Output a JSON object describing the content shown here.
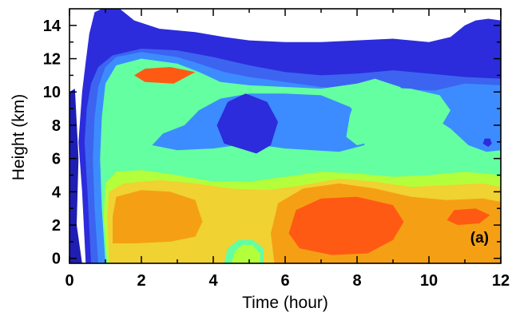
{
  "chart_data": {
    "type": "contour",
    "xlabel": "Time (hour)",
    "ylabel": "Height (km)",
    "panel_label": "(a)",
    "xlim": [
      0,
      12
    ],
    "ylim": [
      -0.3,
      15
    ],
    "xticks": [
      0,
      2,
      4,
      6,
      8,
      10,
      12
    ],
    "yticks": [
      0,
      2,
      4,
      6,
      8,
      10,
      12,
      14
    ],
    "x_tick_labels": [
      "0",
      "2",
      "4",
      "6",
      "8",
      "10",
      "12"
    ],
    "y_tick_labels": [
      "0",
      "2",
      "4",
      "6",
      "8",
      "10",
      "12",
      "14"
    ],
    "level_colors": [
      "#1e1eb4",
      "#2c2cdc",
      "#3c64f0",
      "#3c8cff",
      "#30c8ff",
      "#64ffa0",
      "#b4ff3c",
      "#f0d232",
      "#f5a014",
      "#ff5a14"
    ],
    "regions": [
      {
        "name": "band-outer",
        "color": "#2c2cdc",
        "points": [
          [
            0.45,
            -0.3
          ],
          [
            0.35,
            4
          ],
          [
            0.25,
            7
          ],
          [
            0.3,
            8.5
          ],
          [
            0.35,
            10
          ],
          [
            0.45,
            11.8
          ],
          [
            0.55,
            13.5
          ],
          [
            0.7,
            14.8
          ],
          [
            0.9,
            15
          ],
          [
            1.4,
            15
          ],
          [
            1.8,
            14.3
          ],
          [
            2.5,
            13.8
          ],
          [
            3.5,
            13.6
          ],
          [
            4.3,
            13.3
          ],
          [
            5,
            13.1
          ],
          [
            6,
            13
          ],
          [
            7,
            13
          ],
          [
            8,
            13.1
          ],
          [
            9,
            13.2
          ],
          [
            10,
            13
          ],
          [
            10.6,
            13.3
          ],
          [
            11,
            14
          ],
          [
            11.3,
            14.3
          ],
          [
            11.65,
            14.4
          ],
          [
            12,
            14.3
          ],
          [
            12,
            -0.3
          ]
        ]
      },
      {
        "name": "band-1",
        "color": "#3c64f0",
        "points": [
          [
            0.6,
            -0.3
          ],
          [
            0.5,
            4
          ],
          [
            0.42,
            7
          ],
          [
            0.48,
            9
          ],
          [
            0.6,
            10.5
          ],
          [
            0.8,
            11.5
          ],
          [
            1.2,
            12.2
          ],
          [
            2,
            12.6
          ],
          [
            3,
            12.5
          ],
          [
            4,
            12.1
          ],
          [
            5,
            11.6
          ],
          [
            6,
            11.2
          ],
          [
            7,
            11
          ],
          [
            8,
            11.1
          ],
          [
            9,
            11.3
          ],
          [
            10,
            11.1
          ],
          [
            11,
            10.9
          ],
          [
            12,
            10.8
          ],
          [
            12,
            -0.3
          ]
        ]
      },
      {
        "name": "band-2",
        "color": "#3c8cff",
        "points": [
          [
            0.8,
            -0.3
          ],
          [
            0.7,
            3
          ],
          [
            0.65,
            6
          ],
          [
            0.7,
            8.5
          ],
          [
            0.8,
            10.3
          ],
          [
            1,
            11.5
          ],
          [
            1.3,
            12.1
          ],
          [
            2,
            12.4
          ],
          [
            3,
            12.1
          ],
          [
            3.6,
            11.7
          ],
          [
            4.3,
            11.2
          ],
          [
            5,
            10.9
          ],
          [
            6,
            10.6
          ],
          [
            7,
            10.3
          ],
          [
            8,
            10.1
          ],
          [
            9,
            10.2
          ],
          [
            10,
            10.1
          ],
          [
            12,
            10
          ],
          [
            12,
            -0.3
          ]
        ]
      },
      {
        "name": "band-3",
        "color": "#64ffa0",
        "points": [
          [
            1.0,
            -0.3
          ],
          [
            0.9,
            3
          ],
          [
            0.85,
            6
          ],
          [
            0.9,
            8.5
          ],
          [
            1,
            10.5
          ],
          [
            1.3,
            11.6
          ],
          [
            2,
            12
          ],
          [
            3,
            11.7
          ],
          [
            3.6,
            11.2
          ],
          [
            4.2,
            10.6
          ],
          [
            5,
            10.4
          ],
          [
            6,
            10.3
          ],
          [
            7,
            10.2
          ],
          [
            8,
            10.5
          ],
          [
            8.5,
            10.8
          ],
          [
            9.2,
            10.3
          ],
          [
            9.5,
            9.5
          ],
          [
            9.8,
            8.8
          ],
          [
            10.2,
            8.5
          ],
          [
            11,
            7.5
          ],
          [
            12,
            7.2
          ],
          [
            12,
            -0.3
          ]
        ]
      },
      {
        "name": "band-4",
        "color": "#b4ff3c",
        "points": [
          [
            1.05,
            -0.3
          ],
          [
            0.95,
            2.5
          ],
          [
            1,
            4.5
          ],
          [
            1.3,
            5.2
          ],
          [
            2,
            5.3
          ],
          [
            3,
            5
          ],
          [
            4,
            4.6
          ],
          [
            5,
            4.6
          ],
          [
            6,
            4.9
          ],
          [
            7,
            5.2
          ],
          [
            8,
            5.1
          ],
          [
            9,
            4.9
          ],
          [
            10,
            5
          ],
          [
            11,
            5.2
          ],
          [
            12,
            5
          ],
          [
            12,
            -0.3
          ]
        ]
      },
      {
        "name": "band-5",
        "color": "#f0d232",
        "points": [
          [
            1.1,
            -0.3
          ],
          [
            1.05,
            2.5
          ],
          [
            1.1,
            4
          ],
          [
            1.5,
            4.5
          ],
          [
            2.5,
            4.7
          ],
          [
            3.5,
            4.5
          ],
          [
            4.5,
            4.2
          ],
          [
            5.5,
            4.1
          ],
          [
            6.5,
            4.4
          ],
          [
            7.5,
            4.8
          ],
          [
            8.5,
            4.6
          ],
          [
            9.5,
            4.3
          ],
          [
            10.5,
            4.4
          ],
          [
            11.5,
            4.5
          ],
          [
            12,
            4.3
          ],
          [
            12,
            -0.3
          ]
        ]
      },
      {
        "name": "band-6",
        "color": "#f5a014",
        "points": [
          [
            1.2,
            0.9
          ],
          [
            1.2,
            2.5
          ],
          [
            1.3,
            3.7
          ],
          [
            2,
            4.1
          ],
          [
            2.8,
            4
          ],
          [
            3.5,
            3.5
          ],
          [
            3.7,
            2.2
          ],
          [
            3.5,
            1.3
          ],
          [
            2.8,
            1
          ],
          [
            1.8,
            0.9
          ]
        ]
      },
      {
        "name": "band-7",
        "color": "#f5a014",
        "points": [
          [
            5.7,
            -0.3
          ],
          [
            5.6,
            1.5
          ],
          [
            5.8,
            3.3
          ],
          [
            6.5,
            4.2
          ],
          [
            7.5,
            4.5
          ],
          [
            8.5,
            4.2
          ],
          [
            9.5,
            3.7
          ],
          [
            10.5,
            3.5
          ],
          [
            11.5,
            3.6
          ],
          [
            12,
            3.4
          ],
          [
            12,
            -0.3
          ]
        ]
      },
      {
        "name": "band-8",
        "color": "#ff5a14",
        "points": [
          [
            6.1,
            1.5
          ],
          [
            6.3,
            2.9
          ],
          [
            7,
            3.6
          ],
          [
            8,
            3.7
          ],
          [
            9,
            3.2
          ],
          [
            9.3,
            2.2
          ],
          [
            9.0,
            1.1
          ],
          [
            8.3,
            0.3
          ],
          [
            7.3,
            0.2
          ],
          [
            6.4,
            0.6
          ]
        ]
      },
      {
        "name": "band-9",
        "color": "#ff5a14",
        "points": [
          [
            10.5,
            2.3
          ],
          [
            10.7,
            2.9
          ],
          [
            11.3,
            3
          ],
          [
            11.7,
            2.6
          ],
          [
            11.4,
            2.1
          ],
          [
            10.8,
            2.0
          ]
        ]
      },
      {
        "name": "band-10",
        "color": "#ff5a14",
        "points": [
          [
            1.8,
            11.0
          ],
          [
            2.1,
            11.4
          ],
          [
            2.8,
            11.5
          ],
          [
            3.5,
            11.2
          ],
          [
            2.9,
            10.5
          ],
          [
            2.1,
            10.6
          ]
        ]
      },
      {
        "name": "band-11",
        "color": "#3c8cff",
        "points": [
          [
            2.3,
            6.8
          ],
          [
            3.0,
            6.5
          ],
          [
            4,
            6.6
          ],
          [
            5,
            6.9
          ],
          [
            6,
            6.6
          ],
          [
            7.5,
            6.4
          ],
          [
            8.2,
            6.8
          ],
          [
            8.3,
            8
          ],
          [
            7.8,
            9.1
          ],
          [
            7,
            9.8
          ],
          [
            6,
            9.9
          ],
          [
            5,
            9.9
          ],
          [
            4.2,
            9.6
          ],
          [
            3.6,
            8.9
          ],
          [
            3.2,
            8.0
          ],
          [
            2.6,
            7.5
          ]
        ]
      },
      {
        "name": "band-12",
        "color": "#2c2cdc",
        "points": [
          [
            4.1,
            8.0
          ],
          [
            4.3,
            6.9
          ],
          [
            5.2,
            6.3
          ],
          [
            5.6,
            6.8
          ],
          [
            5.8,
            8.2
          ],
          [
            5.5,
            9.4
          ],
          [
            4.9,
            9.9
          ],
          [
            4.4,
            9.4
          ]
        ]
      },
      {
        "name": "band-13",
        "color": "#3c8cff",
        "points": [
          [
            9.8,
            9.9
          ],
          [
            10.1,
            8.5
          ],
          [
            10.6,
            7.8
          ],
          [
            11.1,
            6.8
          ],
          [
            11.6,
            6.4
          ],
          [
            12,
            6.5
          ],
          [
            12,
            10.4
          ],
          [
            11,
            10.5
          ]
        ]
      },
      {
        "name": "band-14",
        "color": "#64ffa0",
        "points": [
          [
            7.7,
            7.3
          ],
          [
            8.0,
            6.8
          ],
          [
            8.4,
            7.0
          ],
          [
            8.6,
            8.2
          ],
          [
            9.0,
            8.6
          ],
          [
            9.8,
            8.2
          ],
          [
            10.3,
            7.8
          ],
          [
            10.6,
            8.9
          ],
          [
            10.3,
            9.8
          ],
          [
            9.5,
            10.2
          ],
          [
            8.6,
            10.3
          ],
          [
            8.0,
            9.8
          ],
          [
            7.8,
            8.6
          ]
        ]
      },
      {
        "name": "band-15",
        "color": "#2c2cdc",
        "points": [
          [
            11.5,
            6.9
          ],
          [
            11.55,
            7.2
          ],
          [
            11.7,
            7.2
          ],
          [
            11.75,
            6.9
          ],
          [
            11.65,
            6.7
          ]
        ]
      },
      {
        "name": "band-16",
        "color": "#64ffa0",
        "points": [
          [
            4.3,
            -0.3
          ],
          [
            4.4,
            0.6
          ],
          [
            4.7,
            1.1
          ],
          [
            5.1,
            1.1
          ],
          [
            5.4,
            0.6
          ],
          [
            5.4,
            -0.3
          ]
        ]
      },
      {
        "name": "band-17",
        "color": "#b4ff3c",
        "points": [
          [
            4.5,
            -0.3
          ],
          [
            4.6,
            0.4
          ],
          [
            4.8,
            0.8
          ],
          [
            5.1,
            0.8
          ],
          [
            5.3,
            0.3
          ],
          [
            5.3,
            -0.3
          ]
        ]
      },
      {
        "name": "band-18",
        "color": "#1e1eb4",
        "points": [
          [
            0,
            -0.3
          ],
          [
            0,
            10
          ],
          [
            0.15,
            10.2
          ],
          [
            0.25,
            6
          ],
          [
            0.2,
            2
          ],
          [
            0.35,
            -0.3
          ]
        ]
      },
      {
        "name": "band-19",
        "color": "#ffffff",
        "points": [
          [
            0,
            14.3
          ],
          [
            0,
            15
          ],
          [
            0.28,
            15
          ],
          [
            0.2,
            14.5
          ]
        ]
      }
    ]
  }
}
